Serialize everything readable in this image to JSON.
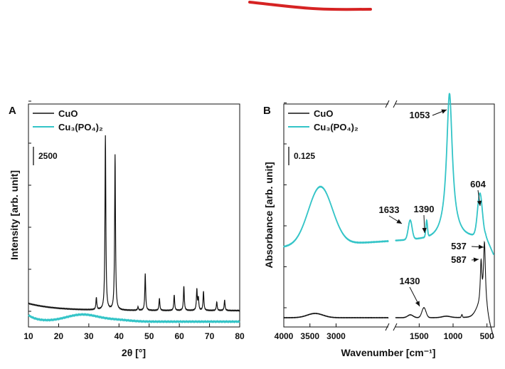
{
  "colors": {
    "cuo": "#111111",
    "cu3po4": "#33c4c7",
    "stroke_mark": "#d62323"
  },
  "chart_data": [
    {
      "panel": "A",
      "type": "line",
      "xlabel": "2θ [°]",
      "ylabel": "Intensity [arb. unit]",
      "xlim": [
        10,
        80
      ],
      "xticks": [
        10,
        20,
        30,
        40,
        50,
        60,
        70,
        80
      ],
      "scale_bar": "2500",
      "grid": false,
      "legend_position": "top-left",
      "series": [
        {
          "name": "CuO",
          "peaks": [
            [
              32.5,
              7
            ],
            [
              35.5,
              100
            ],
            [
              38.7,
              89
            ],
            [
              46.3,
              2
            ],
            [
              48.7,
              21
            ],
            [
              53.4,
              7
            ],
            [
              58.3,
              9
            ],
            [
              61.5,
              14
            ],
            [
              65.8,
              12
            ],
            [
              66.3,
              7
            ],
            [
              68.0,
              11
            ],
            [
              72.4,
              5
            ],
            [
              75.0,
              6
            ]
          ]
        },
        {
          "name": "Cu₃(PO₄)₂",
          "peaks": []
        }
      ]
    },
    {
      "panel": "B",
      "type": "line",
      "xlabel": "Wavenumber [cm⁻¹]",
      "ylabel": "Absorbance [arb. unit]",
      "xlim": [
        4000,
        400
      ],
      "axis_break": [
        2000,
        1850
      ],
      "xticks": [
        4000,
        3500,
        3000,
        1500,
        1000,
        500
      ],
      "scale_bar": "0.125",
      "grid": false,
      "legend_position": "top-left",
      "series": [
        {
          "name": "CuO",
          "peak_labels": [
            1430,
            587,
            537
          ]
        },
        {
          "name": "Cu₃(PO₄)₂",
          "peak_labels": [
            1633,
            1390,
            1053,
            604
          ]
        }
      ]
    }
  ]
}
